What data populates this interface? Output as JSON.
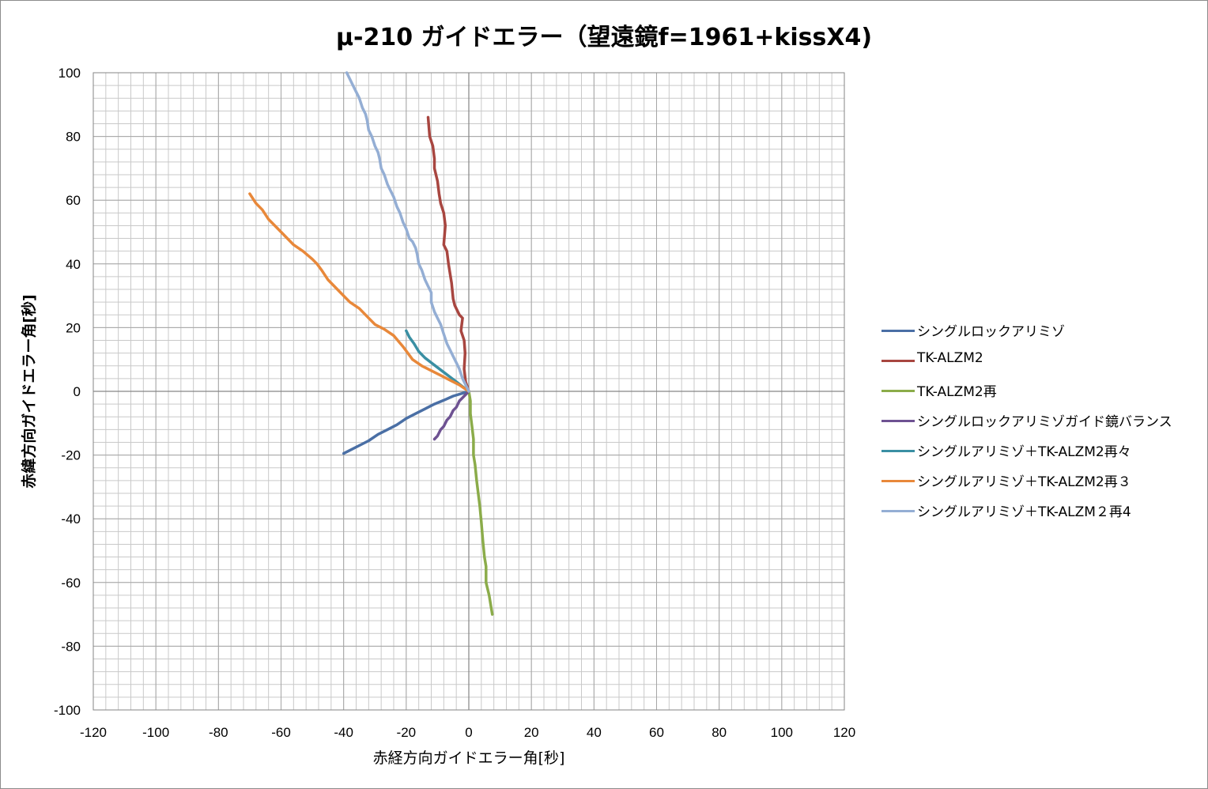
{
  "chart_data": {
    "type": "line",
    "title": "μ-210 ガイドエラー（望遠鏡f=1961+kissX4)",
    "xlabel": "赤経方向ガイドエラー角[秒]",
    "ylabel": "赤緯方向ガイドエラー角[秒]",
    "xlim": [
      -120,
      120
    ],
    "ylim": [
      -100,
      100
    ],
    "x_ticks": [
      "-120",
      "-100",
      "-80",
      "-60",
      "-40",
      "-20",
      "0",
      "20",
      "40",
      "60",
      "80",
      "100",
      "120"
    ],
    "y_ticks": [
      "100",
      "80",
      "60",
      "40",
      "20",
      "0",
      "-20",
      "-40",
      "-60",
      "-80",
      "-100"
    ],
    "grid": true,
    "legend_position": "right",
    "series": [
      {
        "name": "シングルロックアリミゾ",
        "color": "#4a6fa5",
        "points": [
          [
            -40,
            -19.5
          ],
          [
            -38,
            -18.5
          ],
          [
            -35,
            -17
          ],
          [
            -32,
            -15.5
          ],
          [
            -29,
            -13.5
          ],
          [
            -26,
            -12
          ],
          [
            -23,
            -10.5
          ],
          [
            -20,
            -8.5
          ],
          [
            -17,
            -7
          ],
          [
            -14,
            -5.5
          ],
          [
            -11,
            -4
          ],
          [
            -8,
            -2.8
          ],
          [
            -5,
            -1.5
          ],
          [
            -2,
            -0.6
          ],
          [
            0,
            0
          ]
        ]
      },
      {
        "name": "TK-ALZM2",
        "color": "#a84640",
        "points": [
          [
            0,
            0
          ],
          [
            -1,
            3
          ],
          [
            -1.5,
            7
          ],
          [
            -1.2,
            12
          ],
          [
            -1.5,
            16
          ],
          [
            -2.5,
            19
          ],
          [
            -2,
            23
          ],
          [
            -3,
            24
          ],
          [
            -4.5,
            27
          ],
          [
            -5,
            29
          ],
          [
            -5.5,
            34
          ],
          [
            -6.5,
            40
          ],
          [
            -7,
            44
          ],
          [
            -8,
            46
          ],
          [
            -7.5,
            52
          ],
          [
            -8,
            56
          ],
          [
            -9,
            59
          ],
          [
            -9.5,
            62
          ],
          [
            -10,
            66
          ],
          [
            -11,
            70
          ],
          [
            -11,
            73
          ],
          [
            -11.5,
            77
          ],
          [
            -12.5,
            80
          ],
          [
            -13,
            86
          ]
        ]
      },
      {
        "name": "TK-ALZM2再",
        "color": "#8bac4a",
        "points": [
          [
            0,
            0
          ],
          [
            0.5,
            -3
          ],
          [
            0.5,
            -7
          ],
          [
            1,
            -11
          ],
          [
            1.5,
            -15
          ],
          [
            1.5,
            -20
          ],
          [
            2,
            -23
          ],
          [
            2.5,
            -28
          ],
          [
            3,
            -32
          ],
          [
            3.5,
            -36
          ],
          [
            4,
            -41
          ],
          [
            4.5,
            -47
          ],
          [
            5,
            -52
          ],
          [
            5.5,
            -55
          ],
          [
            5.5,
            -60
          ],
          [
            6.5,
            -64
          ],
          [
            7,
            -67
          ],
          [
            7.5,
            -70
          ]
        ]
      },
      {
        "name": "シングルロックアリミゾガイド鏡バランス",
        "color": "#6e5292",
        "points": [
          [
            0,
            0
          ],
          [
            -2,
            -2
          ],
          [
            -3,
            -3
          ],
          [
            -4,
            -5
          ],
          [
            -5,
            -6
          ],
          [
            -6,
            -8
          ],
          [
            -7,
            -9
          ],
          [
            -8,
            -11
          ],
          [
            -9,
            -12
          ],
          [
            -9.5,
            -13
          ],
          [
            -10,
            -14
          ],
          [
            -11,
            -15
          ]
        ]
      },
      {
        "name": "シングルアリミゾ＋TK-ALZM2再々",
        "color": "#3a8fa3",
        "points": [
          [
            0,
            0
          ],
          [
            -2,
            1.5
          ],
          [
            -4,
            3
          ],
          [
            -6,
            4.5
          ],
          [
            -8,
            6
          ],
          [
            -10,
            7.5
          ],
          [
            -12,
            9
          ],
          [
            -14,
            10.5
          ],
          [
            -16,
            12.5
          ],
          [
            -17.5,
            15
          ],
          [
            -19,
            17
          ],
          [
            -20,
            19
          ]
        ]
      },
      {
        "name": "シングルアリミゾ＋TK-ALZM2再３",
        "color": "#e8883a",
        "points": [
          [
            0,
            0
          ],
          [
            -3,
            2
          ],
          [
            -6,
            3.5
          ],
          [
            -9,
            5
          ],
          [
            -12,
            6.5
          ],
          [
            -15,
            8
          ],
          [
            -18,
            10
          ],
          [
            -21,
            14
          ],
          [
            -24,
            17.5
          ],
          [
            -27,
            19.5
          ],
          [
            -30,
            21
          ],
          [
            -32,
            23
          ],
          [
            -35,
            26
          ],
          [
            -38,
            28
          ],
          [
            -41,
            31
          ],
          [
            -43,
            33
          ],
          [
            -45,
            35
          ],
          [
            -47,
            38
          ],
          [
            -48.5,
            40
          ],
          [
            -50,
            41.5
          ],
          [
            -53,
            44
          ],
          [
            -56,
            46
          ],
          [
            -59,
            49
          ],
          [
            -62,
            52
          ],
          [
            -64,
            54
          ],
          [
            -66,
            57
          ],
          [
            -68,
            59
          ],
          [
            -70,
            62
          ]
        ]
      },
      {
        "name": "シングルアリミゾ＋TK-ALZM２再4",
        "color": "#94aed4",
        "points": [
          [
            0,
            0
          ],
          [
            -1,
            2
          ],
          [
            -2,
            4
          ],
          [
            -3,
            7
          ],
          [
            -4,
            9
          ],
          [
            -5,
            11
          ],
          [
            -6,
            13
          ],
          [
            -7,
            15
          ],
          [
            -8,
            18
          ],
          [
            -9,
            21
          ],
          [
            -10,
            23
          ],
          [
            -11,
            25
          ],
          [
            -12,
            28
          ],
          [
            -12,
            31
          ],
          [
            -13,
            33
          ],
          [
            -14,
            35
          ],
          [
            -15,
            38
          ],
          [
            -16,
            40
          ],
          [
            -16.5,
            43
          ],
          [
            -17,
            45
          ],
          [
            -18,
            47
          ],
          [
            -19,
            48
          ],
          [
            -20,
            51
          ],
          [
            -21,
            53
          ],
          [
            -22,
            56
          ],
          [
            -23,
            58
          ],
          [
            -24,
            61
          ],
          [
            -25,
            63
          ],
          [
            -26,
            65
          ],
          [
            -27,
            68
          ],
          [
            -28,
            70
          ],
          [
            -28.5,
            73
          ],
          [
            -29,
            75
          ],
          [
            -30,
            77
          ],
          [
            -31,
            80
          ],
          [
            -32,
            82
          ],
          [
            -32.5,
            85
          ],
          [
            -33,
            87
          ],
          [
            -34,
            89
          ],
          [
            -35,
            92
          ],
          [
            -36,
            94
          ],
          [
            -37,
            96
          ],
          [
            -38,
            98
          ],
          [
            -39,
            100
          ]
        ]
      }
    ]
  }
}
